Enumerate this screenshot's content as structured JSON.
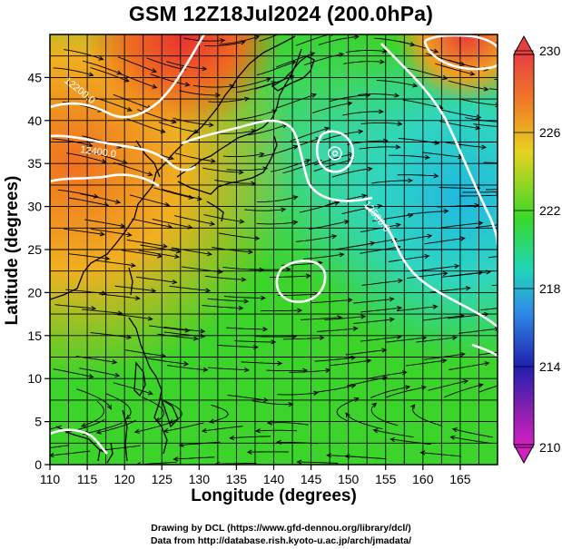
{
  "title": "GSM 12Z18Jul2024 (200.0hPa)",
  "xlabel": "Longitude (degrees)",
  "ylabel": "Latitude  (degrees)",
  "credits": [
    "Drawing by DCL (https://www.gfd-dennou.org/library/dcl/)",
    "Data from http://database.rish.kyoto-u.ac.jp/arch/jmadata/"
  ],
  "map": {
    "lon_range": [
      110,
      170
    ],
    "lat_range": [
      0,
      50
    ],
    "x_ticks": [
      "110",
      "115",
      "120",
      "125",
      "130",
      "135",
      "140",
      "145",
      "150",
      "155",
      "160",
      "165"
    ],
    "y_ticks": [
      "0",
      "5",
      "10",
      "15",
      "20",
      "25",
      "30",
      "35",
      "40",
      "45"
    ],
    "contour_labels": [
      "12200.0",
      "12400.0",
      "12500.0"
    ],
    "field": "temperature (shaded), geopotential height (contours), wind streamlines"
  },
  "colorbar": {
    "labels": [
      "230",
      "226",
      "222",
      "218",
      "214",
      "210"
    ],
    "colors": [
      "#e8484a",
      "#f08a2a",
      "#e6d220",
      "#3ddc2a",
      "#20d8c8",
      "#2e6ae6",
      "#2020b0",
      "#c020c0"
    ]
  }
}
